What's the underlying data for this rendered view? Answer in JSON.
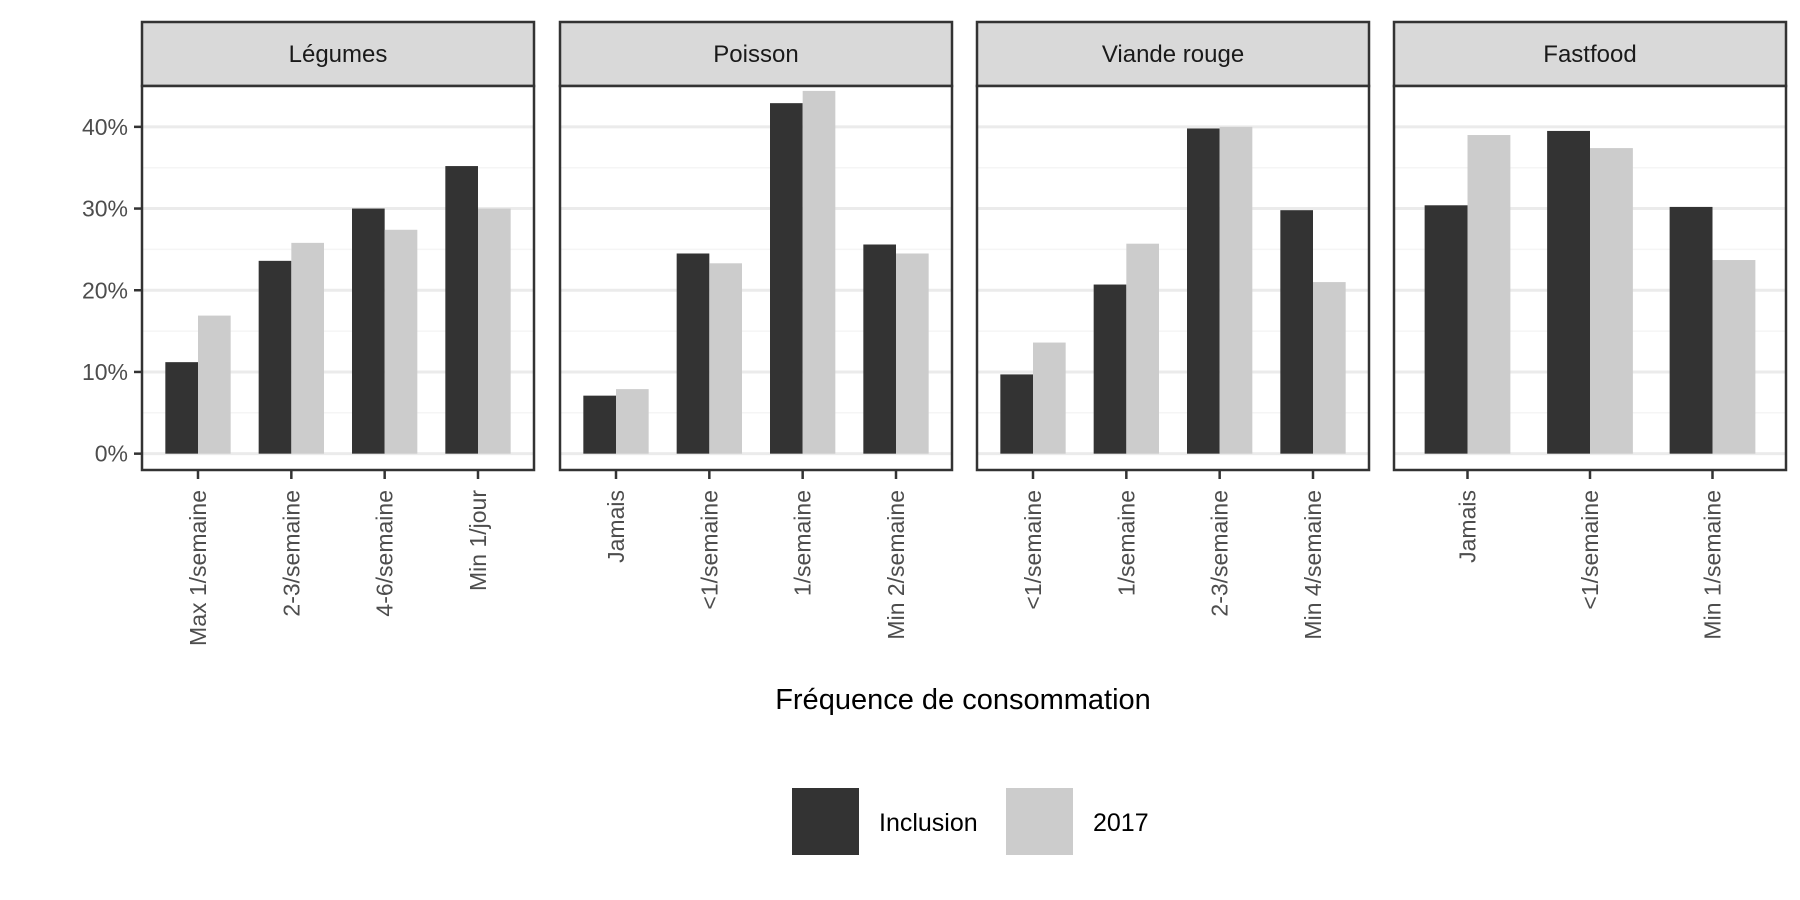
{
  "chart_data": {
    "type": "bar",
    "facets": [
      {
        "title": "Légumes",
        "categories": [
          "Max 1/semaine",
          "2-3/semaine",
          "4-6/semaine",
          "Min 1/jour"
        ],
        "series": [
          {
            "name": "Inclusion",
            "values": [
              11.2,
              23.6,
              30.0,
              35.2
            ]
          },
          {
            "name": "2017",
            "values": [
              16.9,
              25.8,
              27.4,
              30.0
            ]
          }
        ]
      },
      {
        "title": "Poisson",
        "categories": [
          "Jamais",
          "<1/semaine",
          "1/semaine",
          "Min 2/semaine"
        ],
        "series": [
          {
            "name": "Inclusion",
            "values": [
              7.1,
              24.5,
              42.9,
              25.6
            ]
          },
          {
            "name": "2017",
            "values": [
              7.9,
              23.3,
              44.4,
              24.5
            ]
          }
        ]
      },
      {
        "title": "Viande rouge",
        "categories": [
          "<1/semaine",
          "1/semaine",
          "2-3/semaine",
          "Min 4/semaine"
        ],
        "series": [
          {
            "name": "Inclusion",
            "values": [
              9.7,
              20.7,
              39.8,
              29.8
            ]
          },
          {
            "name": "2017",
            "values": [
              13.6,
              25.7,
              40.0,
              21.0
            ]
          }
        ]
      },
      {
        "title": "Fastfood",
        "categories": [
          "Jamais",
          "<1/semaine",
          "Min 1/semaine"
        ],
        "series": [
          {
            "name": "Inclusion",
            "values": [
              30.4,
              39.5,
              30.2
            ]
          },
          {
            "name": "2017",
            "values": [
              39.0,
              37.4,
              23.7
            ]
          }
        ]
      }
    ],
    "y_ticks": [
      "0%",
      "10%",
      "20%",
      "30%",
      "40%"
    ],
    "ylim": [
      -2,
      45
    ],
    "xlabel": "Fréquence de consommation",
    "ylabel": "",
    "legend": {
      "position": "bottom",
      "entries": [
        {
          "label": "Inclusion",
          "color": "#333333"
        },
        {
          "label": "2017",
          "color": "#cccccc"
        }
      ]
    },
    "grid": true,
    "colors": {
      "Inclusion": "#333333",
      "2017": "#cccccc",
      "strip_background": "#d9d9d9",
      "grid_major": "#ebebeb",
      "grid_minor": "#f5f5f5",
      "panel_border": "#333333"
    }
  }
}
